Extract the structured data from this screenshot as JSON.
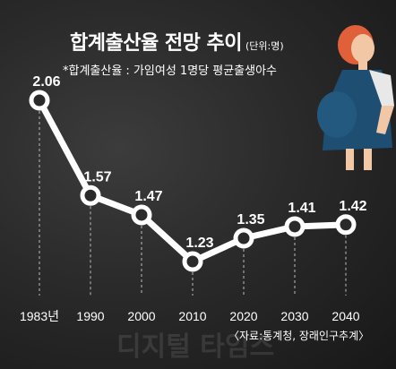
{
  "header": {
    "title": "합계출산율 전망 추이",
    "unit": "(단위:명)",
    "note": "*합계출산율 : 가임여성 1명당 평균출생아수"
  },
  "footer": {
    "source": "〈자료:통계청, 장래인구추계〉",
    "watermark": "디지털 타임스"
  },
  "colors": {
    "line": "#ffffff",
    "background": "#2a2a2a",
    "text": "#ffffff",
    "figure_dress": "#1f4e73",
    "figure_hair": "#e0603a"
  },
  "chart_data": {
    "type": "line",
    "title": "합계출산율 전망 추이",
    "categories": [
      "1983년",
      "1990",
      "2000",
      "2010",
      "2020",
      "2030",
      "2040"
    ],
    "values": [
      2.06,
      1.57,
      1.47,
      1.23,
      1.35,
      1.41,
      1.42
    ],
    "data_labels": [
      "2.06",
      "1.57",
      "1.47",
      "1.23",
      "1.35",
      "1.41",
      "1.42"
    ],
    "ylim": [
      1.0,
      2.2
    ],
    "grid": "vertical dashed drop lines",
    "legend": "none"
  }
}
